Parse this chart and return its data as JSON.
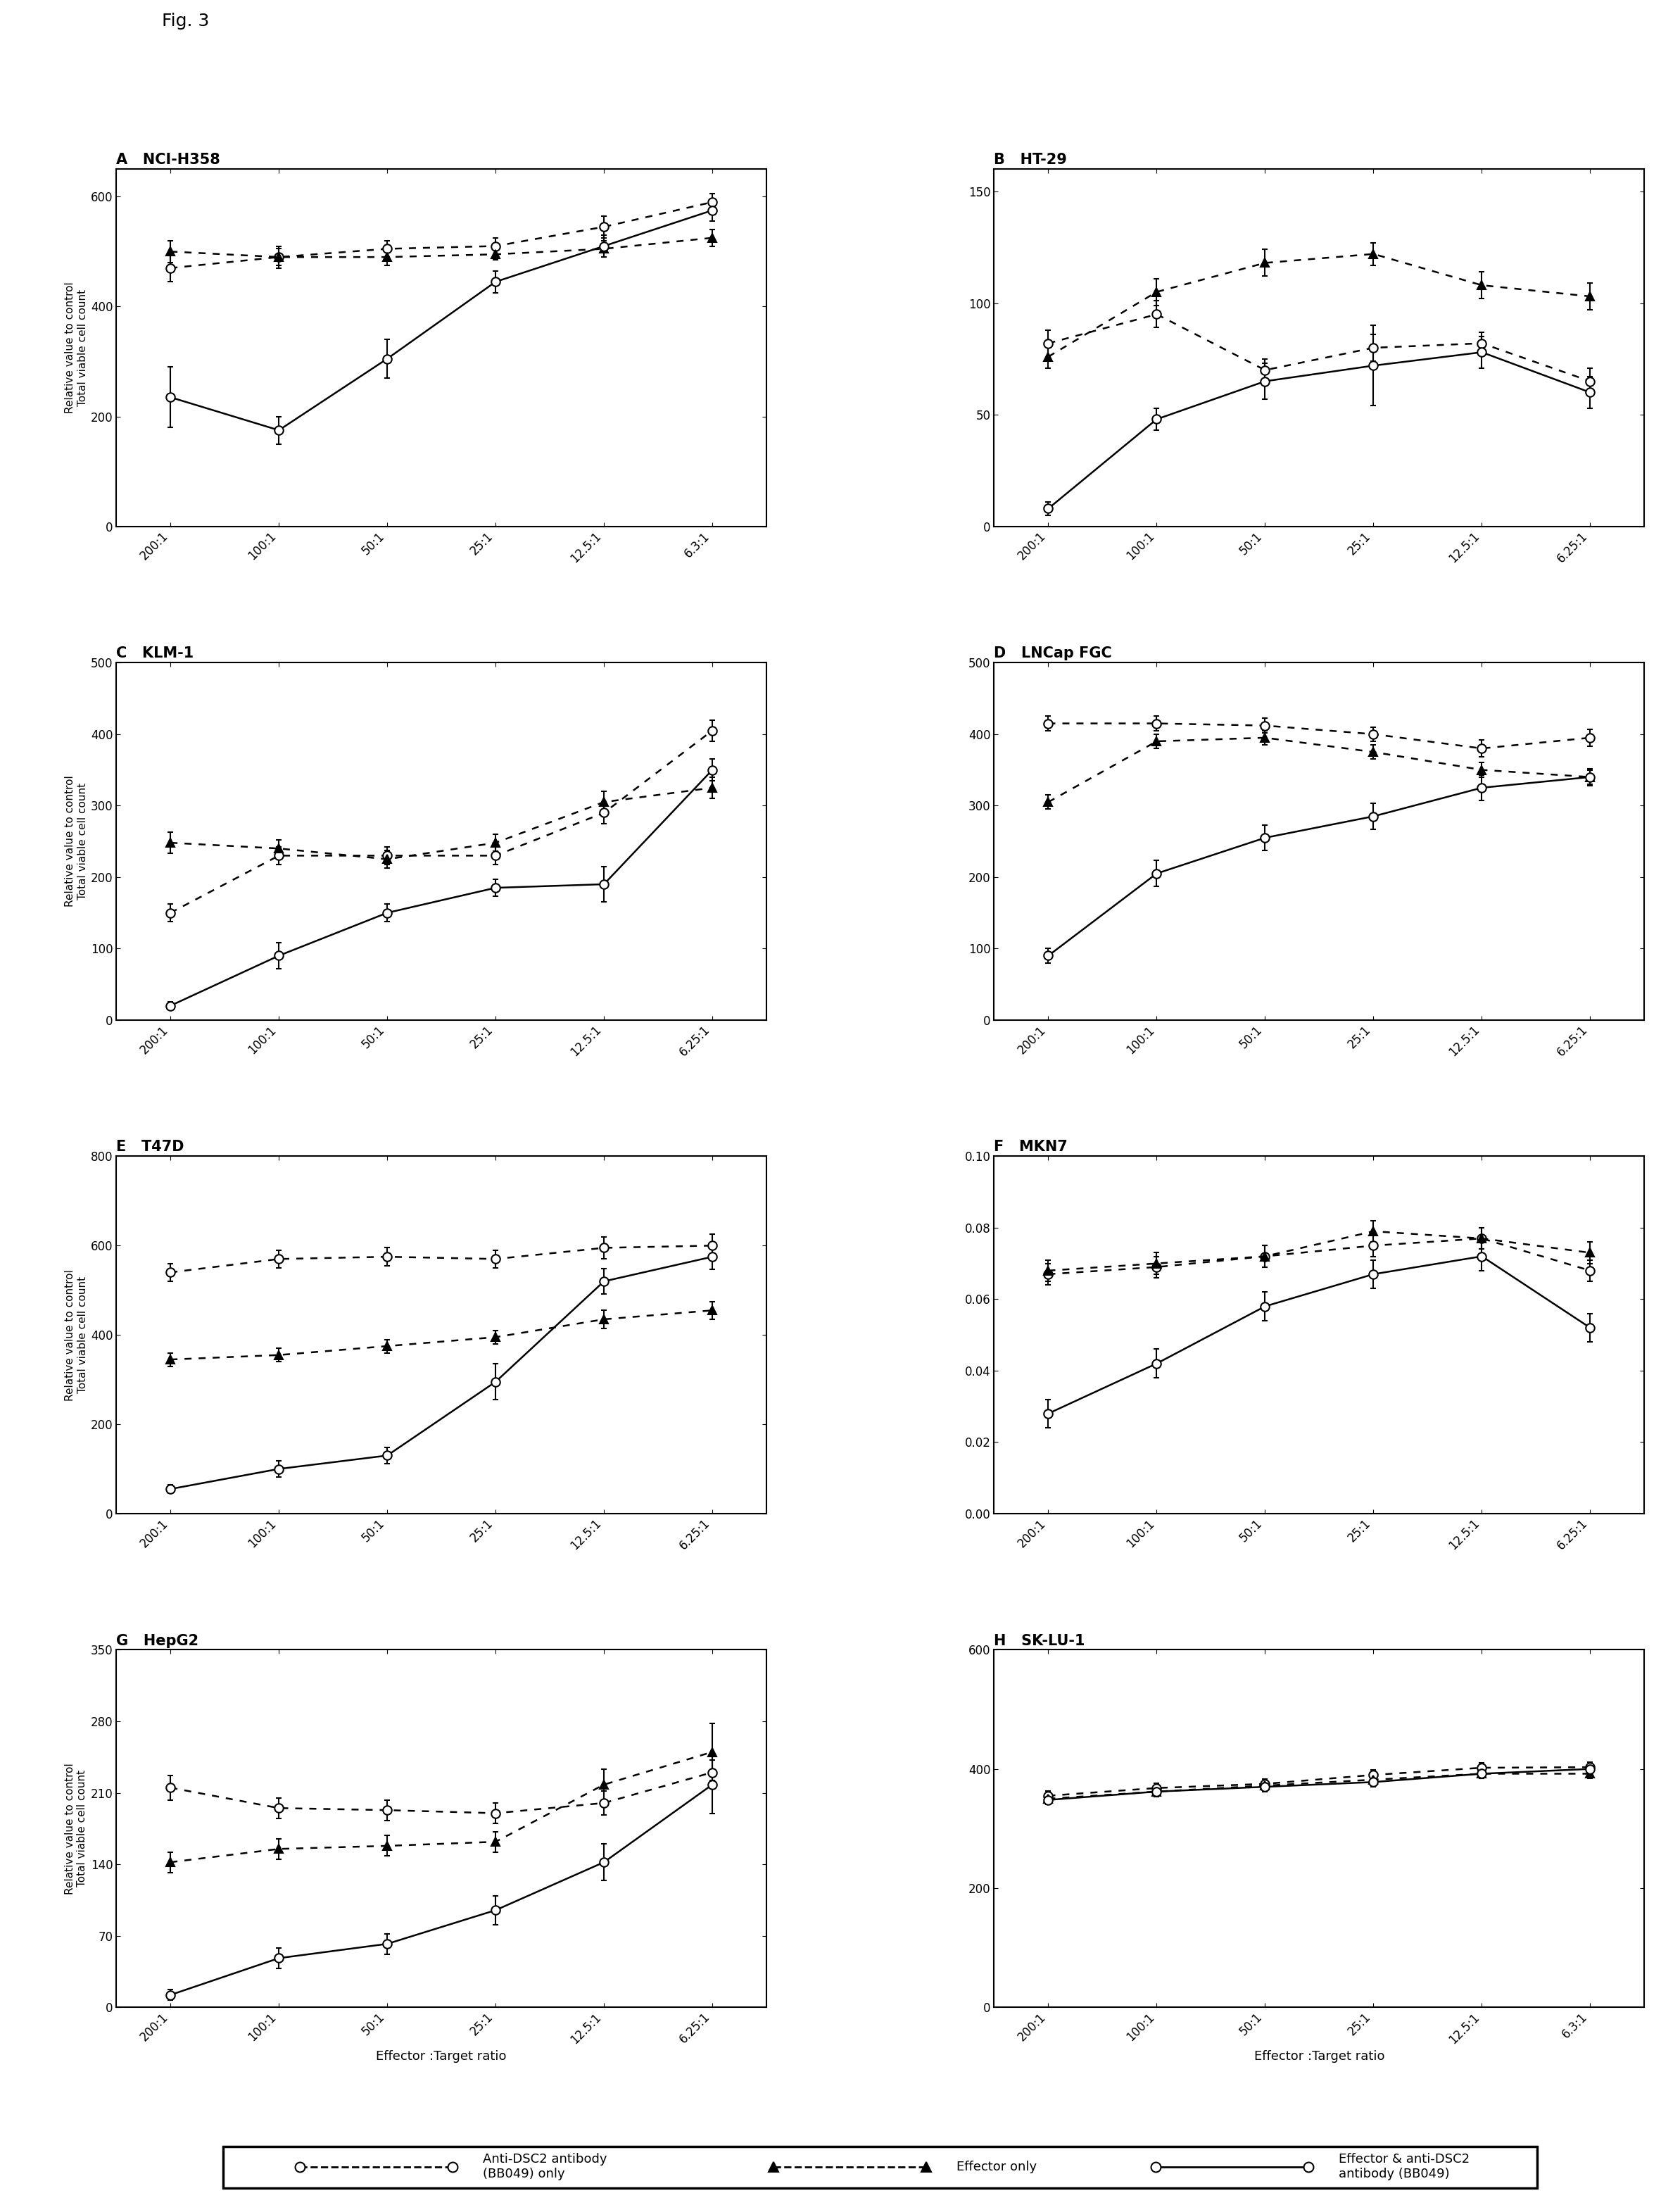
{
  "fig_label": "Fig. 3",
  "panels": [
    {
      "label": "A",
      "title": "NCI-H358",
      "xticklabels": [
        "200:1",
        "100:1",
        "50:1",
        "25:1",
        "12.5:1",
        "6.3:1"
      ],
      "ylim": [
        0,
        650
      ],
      "yticks": [
        0,
        200,
        400,
        600
      ],
      "series": [
        {
          "name": "Anti-DSC2 antibody (BB049) only",
          "style": "dashed",
          "marker": "o",
          "marker_fill": "white",
          "y": [
            470,
            490,
            505,
            510,
            545,
            590
          ],
          "yerr": [
            25,
            20,
            15,
            15,
            20,
            15
          ]
        },
        {
          "name": "Effector only",
          "style": "dashed",
          "marker": "^",
          "marker_fill": "black",
          "y": [
            500,
            490,
            490,
            495,
            505,
            525
          ],
          "yerr": [
            20,
            15,
            15,
            10,
            15,
            15
          ]
        },
        {
          "name": "Effector & anti-DSC2 antibody (BB049)",
          "style": "solid",
          "marker": "o",
          "marker_fill": "white",
          "y": [
            235,
            175,
            305,
            445,
            510,
            575
          ],
          "yerr": [
            55,
            25,
            35,
            20,
            20,
            20
          ]
        }
      ]
    },
    {
      "label": "B",
      "title": "HT-29",
      "xticklabels": [
        "200:1",
        "100:1",
        "50:1",
        "25:1",
        "12.5:1",
        "6.25:1"
      ],
      "ylim": [
        0,
        160
      ],
      "yticks": [
        0,
        50,
        100,
        150
      ],
      "series": [
        {
          "name": "Anti-DSC2 antibody (BB049) only",
          "style": "dashed",
          "marker": "o",
          "marker_fill": "white",
          "y": [
            82,
            95,
            70,
            80,
            82,
            65
          ],
          "yerr": [
            6,
            6,
            5,
            6,
            5,
            6
          ]
        },
        {
          "name": "Effector only",
          "style": "dashed",
          "marker": "^",
          "marker_fill": "black",
          "y": [
            76,
            105,
            118,
            122,
            108,
            103
          ],
          "yerr": [
            5,
            6,
            6,
            5,
            6,
            6
          ]
        },
        {
          "name": "Effector & anti-DSC2 antibody (BB049)",
          "style": "solid",
          "marker": "o",
          "marker_fill": "white",
          "y": [
            8,
            48,
            65,
            72,
            78,
            60
          ],
          "yerr": [
            3,
            5,
            8,
            18,
            7,
            7
          ]
        }
      ]
    },
    {
      "label": "C",
      "title": "KLM-1",
      "xticklabels": [
        "200:1",
        "100:1",
        "50:1",
        "25:1",
        "12.5:1",
        "6.25:1"
      ],
      "ylim": [
        0,
        500
      ],
      "yticks": [
        0,
        100,
        200,
        300,
        400,
        500
      ],
      "series": [
        {
          "name": "Anti-DSC2 antibody (BB049) only",
          "style": "dashed",
          "marker": "o",
          "marker_fill": "white",
          "y": [
            150,
            230,
            230,
            230,
            290,
            405
          ],
          "yerr": [
            12,
            12,
            12,
            12,
            15,
            15
          ]
        },
        {
          "name": "Effector only",
          "style": "dashed",
          "marker": "^",
          "marker_fill": "black",
          "y": [
            248,
            240,
            225,
            248,
            305,
            325
          ],
          "yerr": [
            15,
            12,
            12,
            12,
            15,
            15
          ]
        },
        {
          "name": "Effector & anti-DSC2 antibody (BB049)",
          "style": "solid",
          "marker": "o",
          "marker_fill": "white",
          "y": [
            20,
            90,
            150,
            185,
            190,
            350
          ],
          "yerr": [
            5,
            18,
            12,
            12,
            25,
            15
          ]
        }
      ]
    },
    {
      "label": "D",
      "title": "LNCap FGC",
      "xticklabels": [
        "200:1",
        "100:1",
        "50:1",
        "25:1",
        "12.5:1",
        "6.25:1"
      ],
      "ylim": [
        0,
        500
      ],
      "yticks": [
        0,
        100,
        200,
        300,
        400,
        500
      ],
      "series": [
        {
          "name": "Anti-DSC2 antibody (BB049) only",
          "style": "dashed",
          "marker": "o",
          "marker_fill": "white",
          "y": [
            415,
            415,
            412,
            400,
            380,
            395
          ],
          "yerr": [
            10,
            10,
            10,
            10,
            12,
            12
          ]
        },
        {
          "name": "Effector only",
          "style": "dashed",
          "marker": "^",
          "marker_fill": "black",
          "y": [
            305,
            390,
            395,
            375,
            350,
            340
          ],
          "yerr": [
            10,
            10,
            10,
            10,
            10,
            10
          ]
        },
        {
          "name": "Effector & anti-DSC2 antibody (BB049)",
          "style": "solid",
          "marker": "o",
          "marker_fill": "white",
          "y": [
            90,
            205,
            255,
            285,
            325,
            340
          ],
          "yerr": [
            10,
            18,
            18,
            18,
            18,
            12
          ]
        }
      ]
    },
    {
      "label": "E",
      "title": "T47D",
      "xticklabels": [
        "200:1",
        "100:1",
        "50:1",
        "25:1",
        "12.5:1",
        "6.25:1"
      ],
      "ylim": [
        0,
        800
      ],
      "yticks": [
        0,
        200,
        400,
        600,
        800
      ],
      "series": [
        {
          "name": "Anti-DSC2 antibody (BB049) only",
          "style": "dashed",
          "marker": "o",
          "marker_fill": "white",
          "y": [
            540,
            570,
            575,
            570,
            595,
            600
          ],
          "yerr": [
            20,
            20,
            20,
            20,
            25,
            25
          ]
        },
        {
          "name": "Effector only",
          "style": "dashed",
          "marker": "^",
          "marker_fill": "black",
          "y": [
            345,
            355,
            375,
            395,
            435,
            455
          ],
          "yerr": [
            15,
            15,
            15,
            15,
            20,
            20
          ]
        },
        {
          "name": "Effector & anti-DSC2 antibody (BB049)",
          "style": "solid",
          "marker": "o",
          "marker_fill": "white",
          "y": [
            55,
            100,
            130,
            295,
            520,
            575
          ],
          "yerr": [
            10,
            18,
            18,
            40,
            28,
            28
          ]
        }
      ]
    },
    {
      "label": "F",
      "title": "MKN7",
      "xticklabels": [
        "200:1",
        "100:1",
        "50:1",
        "25:1",
        "12.5:1",
        "6.25:1"
      ],
      "ylim": [
        0,
        0.1
      ],
      "yticks": [
        0,
        0.02,
        0.04,
        0.06,
        0.08,
        0.1
      ],
      "series": [
        {
          "name": "Anti-DSC2 antibody (BB049) only",
          "style": "dashed",
          "marker": "o",
          "marker_fill": "white",
          "y": [
            0.067,
            0.069,
            0.072,
            0.075,
            0.077,
            0.068
          ],
          "yerr": [
            0.003,
            0.003,
            0.003,
            0.003,
            0.003,
            0.003
          ]
        },
        {
          "name": "Effector only",
          "style": "dashed",
          "marker": "^",
          "marker_fill": "black",
          "y": [
            0.068,
            0.07,
            0.072,
            0.079,
            0.077,
            0.073
          ],
          "yerr": [
            0.003,
            0.003,
            0.003,
            0.003,
            0.003,
            0.003
          ]
        },
        {
          "name": "Effector & anti-DSC2 antibody (BB049)",
          "style": "solid",
          "marker": "o",
          "marker_fill": "white",
          "y": [
            0.028,
            0.042,
            0.058,
            0.067,
            0.072,
            0.052
          ],
          "yerr": [
            0.004,
            0.004,
            0.004,
            0.004,
            0.004,
            0.004
          ]
        }
      ]
    },
    {
      "label": "G",
      "title": "HepG2",
      "xticklabels": [
        "200:1",
        "100:1",
        "50:1",
        "25:1",
        "12.5:1",
        "6.25:1"
      ],
      "ylim": [
        0,
        350
      ],
      "yticks": [
        0,
        70,
        140,
        210,
        280,
        350
      ],
      "series": [
        {
          "name": "Anti-DSC2 antibody (BB049) only",
          "style": "dashed",
          "marker": "o",
          "marker_fill": "white",
          "y": [
            215,
            195,
            193,
            190,
            200,
            230
          ],
          "yerr": [
            12,
            10,
            10,
            10,
            12,
            12
          ]
        },
        {
          "name": "Effector only",
          "style": "dashed",
          "marker": "^",
          "marker_fill": "black",
          "y": [
            142,
            155,
            158,
            162,
            218,
            250
          ],
          "yerr": [
            10,
            10,
            10,
            10,
            15,
            28
          ]
        },
        {
          "name": "Effector & anti-DSC2 antibody (BB049)",
          "style": "solid",
          "marker": "o",
          "marker_fill": "white",
          "y": [
            12,
            48,
            62,
            95,
            142,
            218
          ],
          "yerr": [
            5,
            10,
            10,
            14,
            18,
            28
          ]
        }
      ]
    },
    {
      "label": "H",
      "title": "SK-LU-1",
      "xticklabels": [
        "200:1",
        "100:1",
        "50:1",
        "25:1",
        "12.5:1",
        "6.3:1"
      ],
      "ylim": [
        0,
        600
      ],
      "yticks": [
        0,
        200,
        400,
        600
      ],
      "series": [
        {
          "name": "Anti-DSC2 antibody (BB049) only",
          "style": "dashed",
          "marker": "o",
          "marker_fill": "white",
          "y": [
            355,
            368,
            375,
            390,
            402,
            403
          ],
          "yerr": [
            8,
            8,
            8,
            8,
            8,
            8
          ]
        },
        {
          "name": "Effector only",
          "style": "dashed",
          "marker": "^",
          "marker_fill": "black",
          "y": [
            350,
            362,
            372,
            382,
            392,
            392
          ],
          "yerr": [
            8,
            8,
            8,
            8,
            8,
            8
          ]
        },
        {
          "name": "Effector & anti-DSC2 antibody (BB049)",
          "style": "solid",
          "marker": "o",
          "marker_fill": "white",
          "y": [
            348,
            362,
            370,
            378,
            392,
            400
          ],
          "yerr": [
            8,
            8,
            8,
            8,
            8,
            8
          ]
        }
      ]
    }
  ],
  "legend_items": [
    {
      "label": "Anti-DSC2 antibody\n(BB049) only",
      "style": "dashed",
      "marker": "o",
      "marker_fill": "white"
    },
    {
      "label": "Effector only",
      "style": "dashed",
      "marker": "^",
      "marker_fill": "black"
    },
    {
      "label": "Effector & anti-DSC2\nantibody (BB049)",
      "style": "solid",
      "marker": "o",
      "marker_fill": "white"
    }
  ],
  "ylabel": "Relative value to control\nTotal viable cell count",
  "xlabel": "Effector :Target ratio",
  "background_color": "#ffffff",
  "marker_size": 9,
  "line_width": 1.8,
  "title_fontsize": 15,
  "tick_fontsize": 12,
  "ylabel_fontsize": 11,
  "xlabel_fontsize": 13,
  "legend_fontsize": 13
}
